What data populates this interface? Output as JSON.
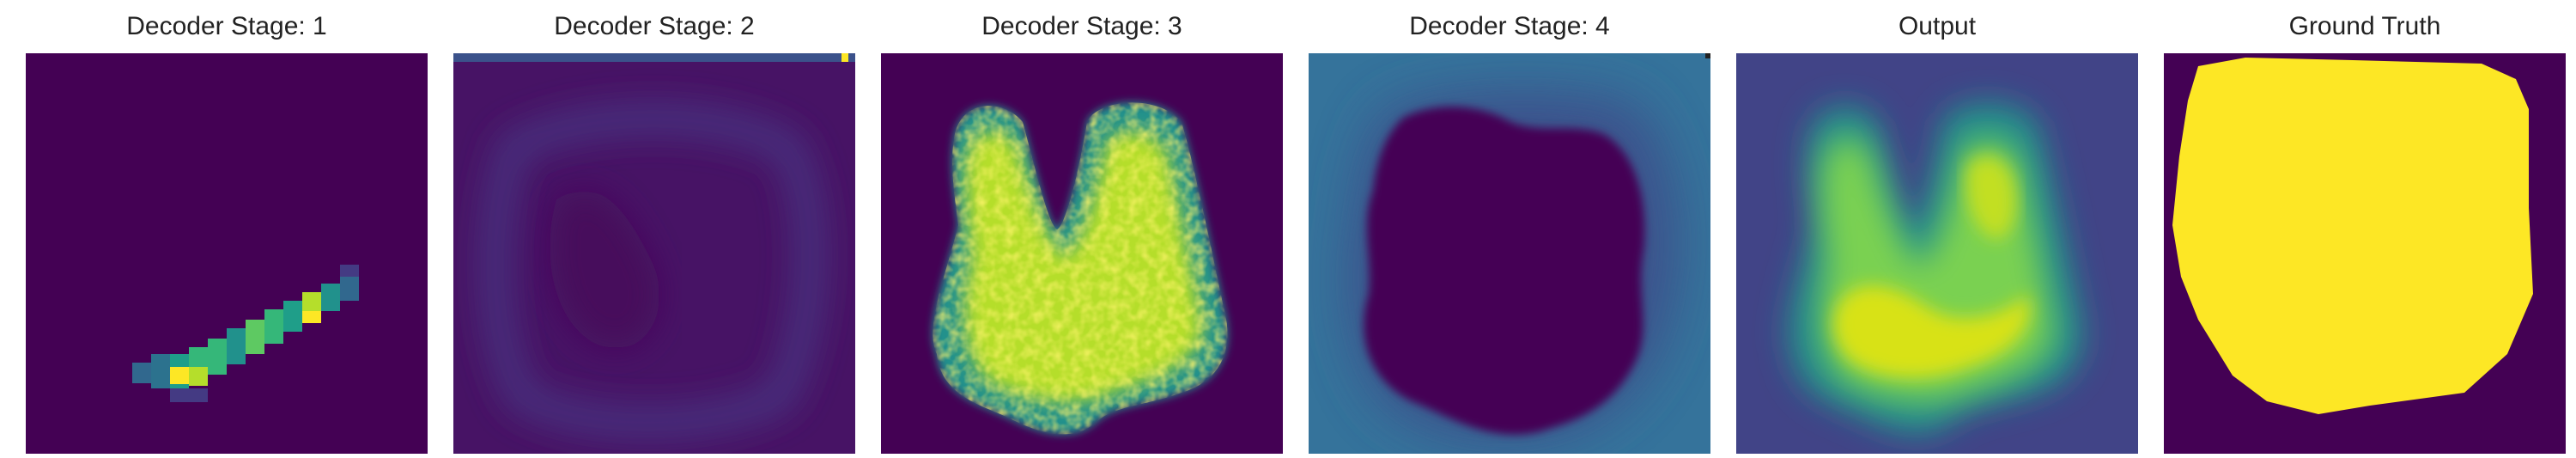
{
  "panels": [
    {
      "title": "Decoder Stage: 1"
    },
    {
      "title": "Decoder Stage: 2"
    },
    {
      "title": "Decoder Stage: 3"
    },
    {
      "title": "Decoder Stage: 4"
    },
    {
      "title": "Output"
    },
    {
      "title": "Ground Truth"
    }
  ],
  "colormap": "viridis",
  "colors": {
    "viridis_dark": "#440154",
    "viridis_blue": "#3b528b",
    "viridis_teal": "#21918c",
    "viridis_green": "#5ec962",
    "viridis_yellow": "#fde725"
  }
}
